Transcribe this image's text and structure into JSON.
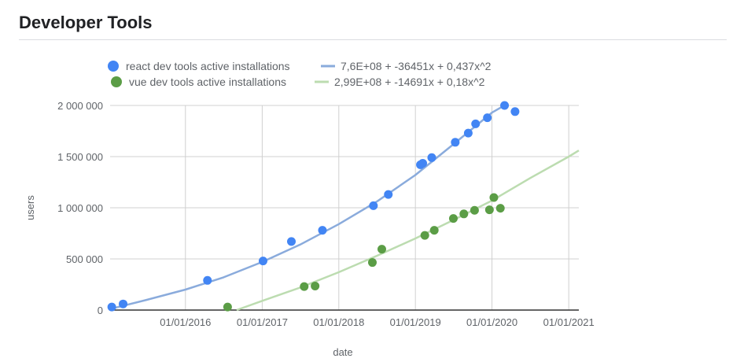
{
  "header": {
    "title": "Developer Tools"
  },
  "legend": {
    "react_points": "react dev tools active installations",
    "react_trend": "7,6E+08 + -36451x + 0,437x^2",
    "vue_points": "vue dev tools active installations",
    "vue_trend": "2,99E+08 + -14691x + 0,18x^2"
  },
  "colors": {
    "react": "#4285f4",
    "react_trend": "#8aabdc",
    "vue": "#5b9d46",
    "vue_trend": "#bcdcb0",
    "grid": "#d0d0d0"
  },
  "chart_data": {
    "type": "scatter",
    "xlabel": "date",
    "ylabel": "users",
    "x_ticks": [
      "01/01/2016",
      "01/01/2017",
      "01/01/2018",
      "01/01/2019",
      "01/01/2020",
      "01/01/2021"
    ],
    "y_ticks": [
      "0",
      "500 000",
      "1 000 000",
      "1 500 000",
      "2 000 000"
    ],
    "xlim": [
      "2015-01-07",
      "2021-02-18"
    ],
    "ylim": [
      0,
      2000000
    ],
    "grid": true,
    "legend_position": "top",
    "series": [
      {
        "name": "react dev tools active installations",
        "points": [
          {
            "x": "2015-01-15",
            "y": 30000
          },
          {
            "x": "2015-03-10",
            "y": 60000
          },
          {
            "x": "2016-04-15",
            "y": 290000
          },
          {
            "x": "2017-01-05",
            "y": 480000
          },
          {
            "x": "2017-05-20",
            "y": 670000
          },
          {
            "x": "2017-10-15",
            "y": 780000
          },
          {
            "x": "2018-06-15",
            "y": 1020000
          },
          {
            "x": "2018-08-25",
            "y": 1130000
          },
          {
            "x": "2019-01-25",
            "y": 1420000
          },
          {
            "x": "2019-02-05",
            "y": 1435000
          },
          {
            "x": "2019-03-20",
            "y": 1490000
          },
          {
            "x": "2019-07-10",
            "y": 1640000
          },
          {
            "x": "2019-09-10",
            "y": 1730000
          },
          {
            "x": "2019-10-15",
            "y": 1820000
          },
          {
            "x": "2019-12-10",
            "y": 1880000
          },
          {
            "x": "2020-03-01",
            "y": 2000000
          },
          {
            "x": "2020-04-20",
            "y": 1940000
          }
        ]
      },
      {
        "name": "vue dev tools active installations",
        "points": [
          {
            "x": "2016-07-20",
            "y": 30000
          },
          {
            "x": "2017-07-20",
            "y": 230000
          },
          {
            "x": "2017-09-10",
            "y": 235000
          },
          {
            "x": "2018-06-10",
            "y": 465000
          },
          {
            "x": "2018-07-25",
            "y": 595000
          },
          {
            "x": "2019-02-15",
            "y": 730000
          },
          {
            "x": "2019-04-01",
            "y": 780000
          },
          {
            "x": "2019-07-01",
            "y": 895000
          },
          {
            "x": "2019-08-20",
            "y": 940000
          },
          {
            "x": "2019-10-10",
            "y": 975000
          },
          {
            "x": "2019-12-20",
            "y": 980000
          },
          {
            "x": "2020-01-10",
            "y": 1100000
          },
          {
            "x": "2020-02-10",
            "y": 995000
          }
        ]
      }
    ],
    "trendlines": [
      {
        "name": "7,6E+08 + -36451x + 0,437x^2",
        "type": "polynomial",
        "degree": 2,
        "points": [
          {
            "x": "2015-01-07",
            "y": 10000
          },
          {
            "x": "2015-07-01",
            "y": 100000
          },
          {
            "x": "2016-01-01",
            "y": 200000
          },
          {
            "x": "2016-07-01",
            "y": 320000
          },
          {
            "x": "2017-01-01",
            "y": 470000
          },
          {
            "x": "2017-07-01",
            "y": 640000
          },
          {
            "x": "2018-01-01",
            "y": 840000
          },
          {
            "x": "2018-07-01",
            "y": 1060000
          },
          {
            "x": "2019-01-01",
            "y": 1320000
          },
          {
            "x": "2019-07-01",
            "y": 1620000
          },
          {
            "x": "2020-01-01",
            "y": 1930000
          },
          {
            "x": "2020-02-29",
            "y": 2000000
          }
        ]
      },
      {
        "name": "2,99E+08 + -14691x + 0,18x^2",
        "type": "polynomial",
        "degree": 2,
        "points": [
          {
            "x": "2016-09-01",
            "y": 0
          },
          {
            "x": "2017-01-01",
            "y": 90000
          },
          {
            "x": "2017-07-01",
            "y": 220000
          },
          {
            "x": "2018-01-01",
            "y": 370000
          },
          {
            "x": "2018-07-01",
            "y": 530000
          },
          {
            "x": "2019-01-01",
            "y": 700000
          },
          {
            "x": "2019-07-01",
            "y": 880000
          },
          {
            "x": "2020-01-01",
            "y": 1070000
          },
          {
            "x": "2020-07-01",
            "y": 1290000
          },
          {
            "x": "2021-01-01",
            "y": 1500000
          },
          {
            "x": "2021-02-18",
            "y": 1560000
          }
        ]
      }
    ]
  }
}
